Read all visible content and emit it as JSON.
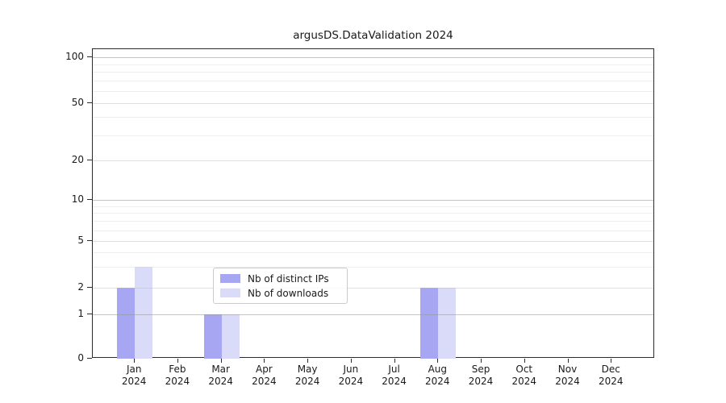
{
  "chart_data": {
    "type": "bar",
    "title": "argusDS.DataValidation 2024",
    "categories": [
      "Jan",
      "Feb",
      "Mar",
      "Apr",
      "May",
      "Jun",
      "Jul",
      "Aug",
      "Sep",
      "Oct",
      "Nov",
      "Dec"
    ],
    "x_tick_year_line": "2024",
    "series": [
      {
        "name": "Nb of distinct IPs",
        "color": "#a6a6f2",
        "values": [
          2,
          0,
          1,
          0,
          0,
          0,
          0,
          2,
          0,
          0,
          0,
          0
        ]
      },
      {
        "name": "Nb of downloads",
        "color": "#dadaf9",
        "values": [
          3,
          0,
          1,
          0,
          0,
          0,
          0,
          2,
          0,
          0,
          0,
          0
        ]
      }
    ],
    "y_ticks": [
      0,
      1,
      2,
      5,
      10,
      20,
      50,
      100
    ],
    "y_scale": "symlog",
    "ylim": [
      0,
      110
    ],
    "xlabel": "",
    "ylabel": "",
    "grid": true,
    "legend_position": "lower center",
    "background_color": "#ffffff",
    "axis_color": "#2b2b2b"
  }
}
